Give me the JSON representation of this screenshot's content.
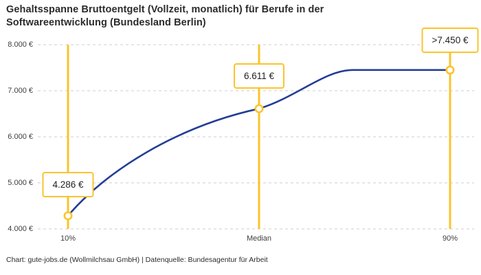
{
  "title": "Gehaltsspanne Bruttoentgelt (Vollzeit, monatlich) für Berufe in der Softwareentwicklung (Bundesland Berlin)",
  "footer": "Chart: gute-jobs.de (Wollmilchsau GmbH) | Datenquelle: Bundesagentur für Arbeit",
  "chart_data": {
    "type": "line",
    "title": "Gehaltsspanne Bruttoentgelt (Vollzeit, monatlich) für Berufe in der Softwareentwicklung (Bundesland Berlin)",
    "categories": [
      "10%",
      "Median",
      "90%"
    ],
    "values": [
      4286,
      6611,
      7450
    ],
    "point_labels": [
      "4.286 €",
      "6.611 €",
      ">7.450 €"
    ],
    "last_value_capped": true,
    "ylim": [
      4000,
      8000
    ],
    "yticks": [
      4000,
      5000,
      6000,
      7000,
      8000
    ],
    "ytick_labels": [
      "4.000 €",
      "5.000 €",
      "6.000 €",
      "7.000 €",
      "8.000 €"
    ],
    "grid": "horizontal-dashed",
    "legend_position": "none",
    "curve": "smoothed, plateaus at capped 90% value",
    "colors": {
      "line": "#243e96",
      "accent": "#fbc32c",
      "grid": "#cccccc",
      "text": "#2b2b2b"
    }
  }
}
